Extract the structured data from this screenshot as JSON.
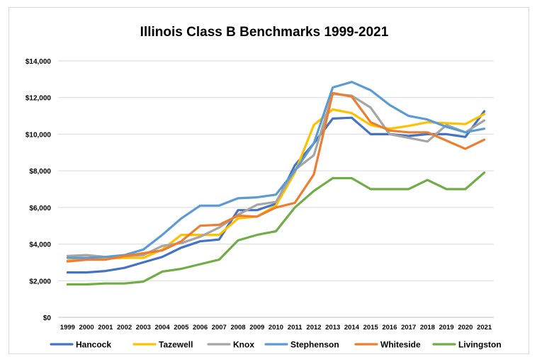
{
  "chart_data": {
    "type": "line",
    "title": "Illinois Class B Benchmarks 1999-2021",
    "xlabel": "",
    "ylabel": "",
    "ylim": [
      0,
      14000
    ],
    "yticks": [
      0,
      2000,
      4000,
      6000,
      8000,
      10000,
      12000,
      14000
    ],
    "ytick_labels": [
      "$0",
      "$2,000",
      "$4,000",
      "$6,000",
      "$8,000",
      "$10,000",
      "$12,000",
      "$14,000"
    ],
    "categories": [
      "1999",
      "2000",
      "2001",
      "2002",
      "2003",
      "2004",
      "2005",
      "2006",
      "2007",
      "2008",
      "2009",
      "2010",
      "2011",
      "2012",
      "2013",
      "2014",
      "2015",
      "2016",
      "2017",
      "2018",
      "2019",
      "2020",
      "2021"
    ],
    "grid": "horizontal",
    "legend_position": "bottom",
    "series": [
      {
        "name": "Hancock",
        "color": "#4472c4",
        "values": [
          2450,
          2450,
          2530,
          2700,
          3000,
          3300,
          3800,
          4150,
          4250,
          5850,
          5850,
          6200,
          8300,
          9500,
          10850,
          10900,
          10000,
          10000,
          9900,
          10000,
          10000,
          9850,
          11250
        ]
      },
      {
        "name": "Tazewell",
        "color": "#ffc000",
        "values": [
          3100,
          3200,
          3200,
          3250,
          3250,
          3700,
          4500,
          4500,
          4500,
          5400,
          5500,
          6100,
          7900,
          10500,
          11350,
          11150,
          10500,
          10300,
          10450,
          10650,
          10600,
          10550,
          11100
        ]
      },
      {
        "name": "Knox",
        "color": "#a5a5a5",
        "values": [
          3350,
          3400,
          3300,
          3350,
          3400,
          3900,
          4050,
          4400,
          4900,
          5600,
          6150,
          6300,
          8050,
          8850,
          12200,
          12100,
          11450,
          10000,
          9800,
          9600,
          10500,
          10100,
          10750
        ]
      },
      {
        "name": "Stephenson",
        "color": "#5b9bd5",
        "values": [
          3250,
          3250,
          3300,
          3400,
          3700,
          4500,
          5400,
          6100,
          6100,
          6500,
          6550,
          6700,
          8000,
          9500,
          12550,
          12850,
          12400,
          11600,
          11000,
          10800,
          10400,
          10100,
          10300
        ]
      },
      {
        "name": "Whiteside",
        "color": "#ed7d31",
        "values": [
          3050,
          3150,
          3150,
          3350,
          3500,
          3650,
          4150,
          5000,
          5050,
          5550,
          5500,
          6000,
          6250,
          7800,
          12250,
          12050,
          10650,
          10200,
          10100,
          10100,
          9650,
          9200,
          9700
        ]
      },
      {
        "name": "Livingston",
        "color": "#70ad47",
        "values": [
          1800,
          1800,
          1850,
          1850,
          1950,
          2500,
          2650,
          2900,
          3150,
          4200,
          4500,
          4700,
          6000,
          6900,
          7600,
          7600,
          7000,
          7000,
          7000,
          7500,
          7000,
          7000,
          7900
        ]
      }
    ]
  }
}
